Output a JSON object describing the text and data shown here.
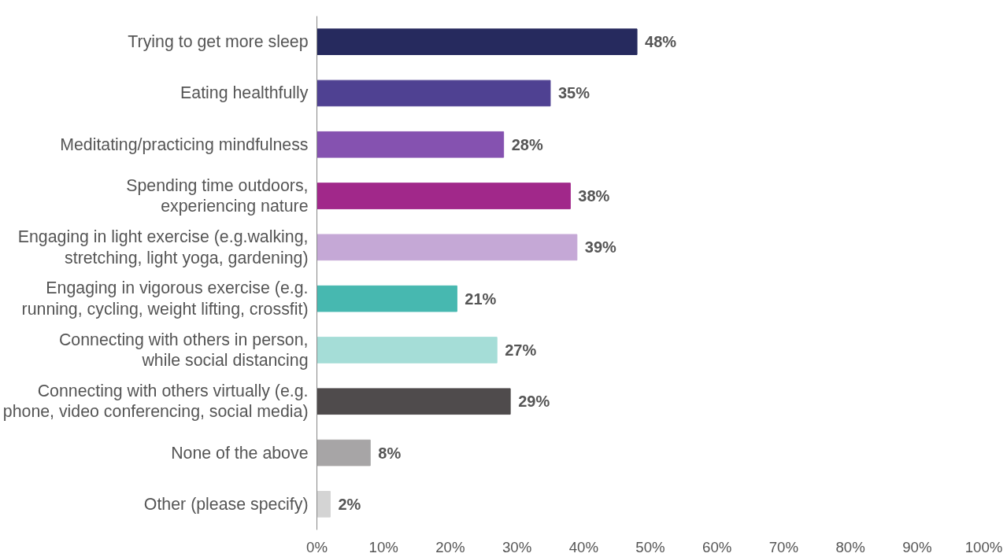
{
  "chart_data": {
    "type": "bar",
    "orientation": "horizontal",
    "categories": [
      "Trying to get more sleep",
      "Eating healthfully",
      "Meditating/practicing mindfulness",
      "Spending time outdoors,\nexperiencing nature",
      "Engaging in light exercise (e.g.walking,\nstretching, light yoga, gardening)",
      "Engaging in vigorous exercise (e.g.\nrunning, cycling, weight lifting, crossfit)",
      "Connecting with others in person,\nwhile social distancing",
      "Connecting with others virtually (e.g.\nphone, video conferencing, social media)",
      "None of the above",
      "Other (please specify)"
    ],
    "values": [
      48,
      35,
      28,
      38,
      39,
      21,
      27,
      29,
      8,
      2
    ],
    "colors": [
      "#262a5e",
      "#4f4192",
      "#8552b0",
      "#a1288a",
      "#c5a8d6",
      "#47b8b0",
      "#a5ddd7",
      "#4f4b4c",
      "#a7a5a6",
      "#d4d4d4"
    ],
    "value_labels": [
      "48%",
      "35%",
      "28%",
      "38%",
      "39%",
      "21%",
      "27%",
      "29%",
      "8%",
      "2%"
    ],
    "xlim": [
      0,
      100
    ],
    "xticks": [
      {
        "value": 0,
        "label": "0%"
      },
      {
        "value": 10,
        "label": "10%"
      },
      {
        "value": 20,
        "label": "20%"
      },
      {
        "value": 30,
        "label": "30%"
      },
      {
        "value": 40,
        "label": "40%"
      },
      {
        "value": 50,
        "label": "50%"
      },
      {
        "value": 60,
        "label": "60%"
      },
      {
        "value": 70,
        "label": "70%"
      },
      {
        "value": 80,
        "label": "80%"
      },
      {
        "value": 90,
        "label": "90%"
      },
      {
        "value": 100,
        "label": "100%"
      }
    ],
    "grid": false
  }
}
